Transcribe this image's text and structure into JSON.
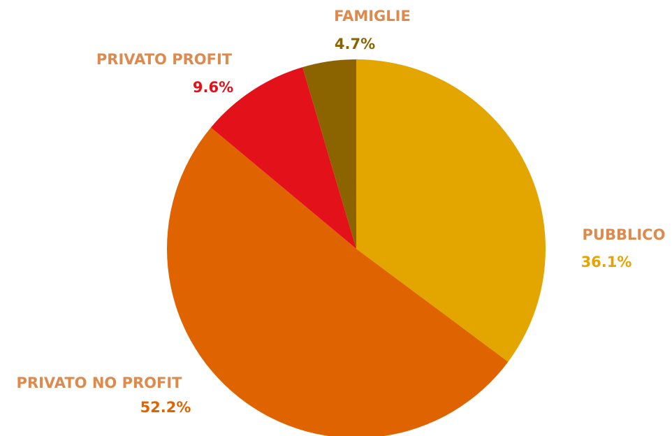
{
  "chart_data": {
    "type": "pie",
    "categories": [
      "PUBBLICO",
      "PRIVATO NO PROFIT",
      "PRIVATO PROFIT",
      "FAMIGLIE"
    ],
    "values": [
      36.1,
      52.2,
      9.6,
      4.7
    ],
    "value_labels": [
      "36.1%",
      "52.2%",
      "9.6%",
      "4.7%"
    ],
    "colors": [
      "#e3a600",
      "#df6400",
      "#e31119",
      "#8b6400"
    ]
  }
}
